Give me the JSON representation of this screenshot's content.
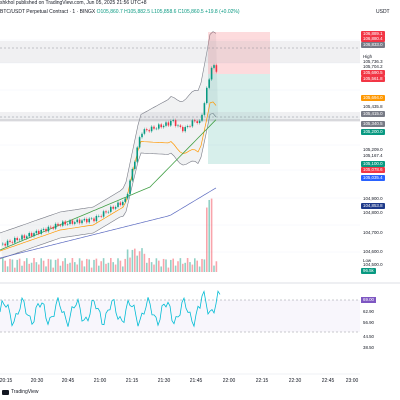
{
  "header": {
    "subtitle": "shkhol published on TradingView.com, Jun 05, 2025 21:56 UTC+8",
    "symbol": "BTC/USDT Perpetual Contract · 1 · BINGX",
    "ohlc": "O105,860.7 H105,882.5 L105,858.6 C105,860.5 +19.8 (+0.02%)",
    "currency": "USDT"
  },
  "price_axis": {
    "labels": [
      {
        "text": "106,889.1",
        "style": "red"
      },
      {
        "text": "106,880.4",
        "style": "red"
      },
      {
        "text": "106,833.0",
        "style": "gray"
      },
      {
        "text": "High",
        "style": "plain"
      },
      {
        "text": "105,736.3",
        "style": "plain"
      },
      {
        "text": "105,704.2",
        "style": "plain"
      },
      {
        "text": "105,690.5",
        "style": "red"
      },
      {
        "text": "105,561.8",
        "style": "red"
      },
      {
        "text": "105,694.0",
        "style": "orange"
      },
      {
        "text": "105,435.8",
        "style": "plain"
      },
      {
        "text": "105,415.0",
        "style": "gray"
      },
      {
        "text": "105,340.5",
        "style": "gray"
      },
      {
        "text": "105,200.0",
        "style": "green"
      },
      {
        "text": "105,209.0",
        "style": "plain"
      },
      {
        "text": "105,167.4",
        "style": "plain"
      },
      {
        "text": "105,100.0",
        "style": "green"
      },
      {
        "text": "105,078.6",
        "style": "red"
      },
      {
        "text": "105,035.4",
        "style": "blue"
      },
      {
        "text": "104,900.0",
        "style": "plain"
      },
      {
        "text": "104,853.8",
        "style": "navy"
      },
      {
        "text": "104,800.0",
        "style": "plain"
      },
      {
        "text": "104,700.0",
        "style": "plain"
      },
      {
        "text": "104,600.0",
        "style": "plain"
      },
      {
        "text": "Low",
        "style": "plain"
      },
      {
        "text": "104,500.0",
        "style": "plain"
      },
      {
        "text": "96.5k",
        "style": "green"
      }
    ],
    "rsi_labels": [
      {
        "text": "69.00",
        "style": "purple"
      },
      {
        "text": "62.90",
        "style": "plain"
      },
      {
        "text": "56.90",
        "style": "plain"
      },
      {
        "text": "44.50",
        "style": "plain"
      },
      {
        "text": "38.50",
        "style": "plain"
      }
    ]
  },
  "time_axis": [
    "20:15",
    "20:30",
    "20:45",
    "21:00",
    "21:15",
    "21:30",
    "21:45",
    "22:00",
    "22:15",
    "22:30",
    "22:45",
    "23:00"
  ],
  "brand": {
    "name": "TradingView"
  },
  "colors": {
    "up": "#089981",
    "down": "#f23645",
    "band": "#787b86"
  }
}
